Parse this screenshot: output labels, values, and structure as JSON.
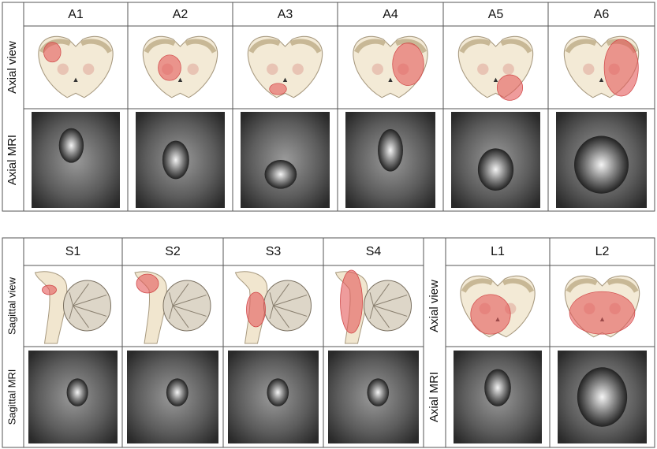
{
  "top": {
    "columns": [
      "A1",
      "A2",
      "A3",
      "A4",
      "A5",
      "A6"
    ],
    "rows": [
      "Axial view",
      "Axial MRI"
    ]
  },
  "sagittal": {
    "columns": [
      "S1",
      "S2",
      "S3",
      "S4"
    ],
    "rows": [
      "Sagittal view",
      "Sagittal MRI"
    ]
  },
  "axial": {
    "columns": [
      "L1",
      "L2"
    ],
    "rows": [
      "Axial view",
      "Axial MRI"
    ]
  }
}
